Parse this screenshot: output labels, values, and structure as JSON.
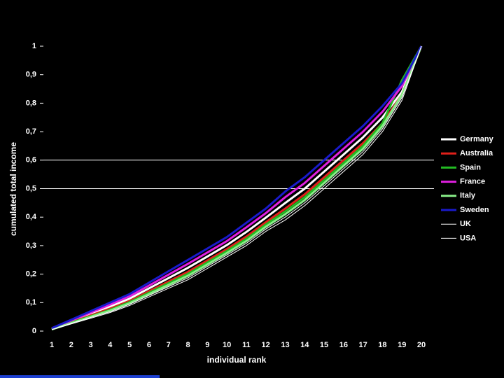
{
  "chart_data": {
    "type": "line",
    "xlabel": "individual rank",
    "ylabel": "cumulated total income",
    "x": [
      1,
      2,
      3,
      4,
      5,
      6,
      7,
      8,
      9,
      10,
      11,
      12,
      13,
      14,
      15,
      16,
      17,
      18,
      19,
      20
    ],
    "xlim": [
      1,
      20
    ],
    "ylim": [
      0,
      1
    ],
    "yticks": [
      0,
      {
        "value": 0.1,
        "label": "0,1"
      },
      {
        "value": 0.2,
        "label": "0,2"
      },
      {
        "value": 0.3,
        "label": "0,3"
      },
      {
        "value": 0.4,
        "label": "0,4"
      },
      {
        "value": 0.5,
        "label": "0,5"
      },
      {
        "value": 0.6,
        "label": "0,6"
      },
      {
        "value": 0.7,
        "label": "0,7"
      },
      {
        "value": 0.8,
        "label": "0,8"
      },
      {
        "value": 0.9,
        "label": "0,9"
      },
      1
    ],
    "reference_lines": [
      0.5,
      0.6
    ],
    "legend": "right",
    "series": [
      {
        "name": "Germany",
        "color": "#ffffff",
        "line_width": 3,
        "values": [
          0.008,
          0.034,
          0.06,
          0.086,
          0.114,
          0.15,
          0.186,
          0.222,
          0.262,
          0.302,
          0.348,
          0.398,
          0.45,
          0.5,
          0.56,
          0.62,
          0.68,
          0.75,
          0.84,
          1
        ]
      },
      {
        "name": "Australia",
        "color": "#e0201a",
        "line_width": 3,
        "values": [
          0.007,
          0.031,
          0.055,
          0.079,
          0.106,
          0.14,
          0.174,
          0.208,
          0.248,
          0.288,
          0.332,
          0.382,
          0.43,
          0.48,
          0.54,
          0.6,
          0.66,
          0.73,
          0.83,
          1
        ]
      },
      {
        "name": "Spain",
        "color": "#22bb22",
        "line_width": 3,
        "values": [
          0.007,
          0.03,
          0.052,
          0.075,
          0.102,
          0.135,
          0.168,
          0.201,
          0.241,
          0.281,
          0.324,
          0.374,
          0.42,
          0.47,
          0.53,
          0.59,
          0.65,
          0.73,
          0.88,
          1
        ]
      },
      {
        "name": "France",
        "color": "#e020e0",
        "line_width": 3,
        "values": [
          0.01,
          0.037,
          0.065,
          0.093,
          0.122,
          0.16,
          0.198,
          0.236,
          0.276,
          0.316,
          0.364,
          0.414,
          0.47,
          0.52,
          0.58,
          0.64,
          0.7,
          0.77,
          0.86,
          1
        ]
      },
      {
        "name": "Italy",
        "color": "#88ee88",
        "line_width": 3,
        "values": [
          0.006,
          0.028,
          0.05,
          0.072,
          0.098,
          0.13,
          0.162,
          0.194,
          0.234,
          0.274,
          0.316,
          0.366,
          0.41,
          0.46,
          0.52,
          0.58,
          0.64,
          0.72,
          0.83,
          1
        ]
      },
      {
        "name": "Sweden",
        "color": "#1a1acc",
        "line_width": 3,
        "values": [
          0.01,
          0.04,
          0.07,
          0.1,
          0.13,
          0.17,
          0.21,
          0.25,
          0.29,
          0.33,
          0.38,
          0.43,
          0.49,
          0.54,
          0.6,
          0.66,
          0.72,
          0.79,
          0.87,
          1
        ]
      },
      {
        "name": "UK",
        "color": "#ffffff",
        "line_width": 1,
        "values": [
          0.006,
          0.027,
          0.048,
          0.068,
          0.094,
          0.125,
          0.156,
          0.187,
          0.227,
          0.267,
          0.308,
          0.358,
          0.4,
          0.45,
          0.51,
          0.57,
          0.63,
          0.71,
          0.82,
          1
        ]
      },
      {
        "name": "USA",
        "color": "#ffffff",
        "line_width": 1,
        "values": [
          0.005,
          0.025,
          0.045,
          0.065,
          0.09,
          0.12,
          0.15,
          0.18,
          0.22,
          0.26,
          0.3,
          0.35,
          0.39,
          0.44,
          0.5,
          0.56,
          0.62,
          0.7,
          0.81,
          1
        ]
      }
    ]
  }
}
